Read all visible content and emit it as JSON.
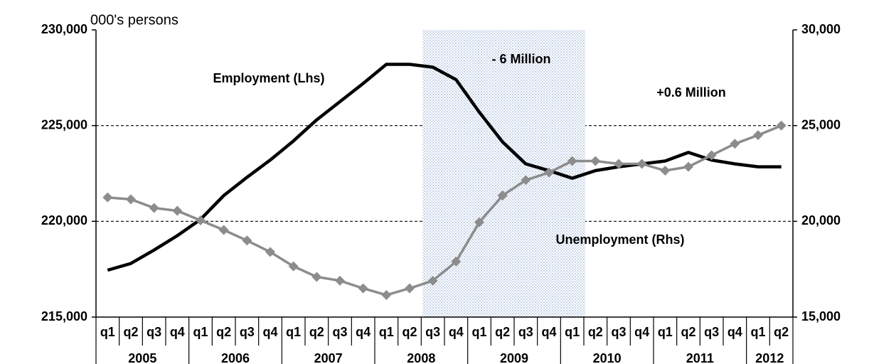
{
  "chart_data": {
    "type": "line",
    "y_unit_label": "000's persons",
    "categories": [
      "q1",
      "q2",
      "q3",
      "q4",
      "q1",
      "q2",
      "q3",
      "q4",
      "q1",
      "q2",
      "q3",
      "q4",
      "q1",
      "q2",
      "q3",
      "q4",
      "q1",
      "q2",
      "q3",
      "q4",
      "q1",
      "q2",
      "q3",
      "q4",
      "q1",
      "q2",
      "q3",
      "q4",
      "q1",
      "q2"
    ],
    "groups": [
      "2005",
      "2006",
      "2007",
      "2008",
      "2009",
      "2010",
      "2011",
      "2012"
    ],
    "series": [
      {
        "name": "Employment (Lhs)",
        "color": "#000000",
        "axis": "y",
        "values": [
          217450,
          217800,
          218500,
          219250,
          220100,
          221350,
          222300,
          223200,
          224200,
          225300,
          226250,
          227200,
          228200,
          228200,
          228050,
          227400,
          225700,
          224150,
          223000,
          222650,
          222250,
          222650,
          222850,
          223000,
          223150,
          223600,
          223200,
          223000,
          222850,
          222850
        ]
      },
      {
        "name": "Unemployment (Rhs)",
        "color": "#8c8c8c",
        "axis": "y2",
        "values": [
          21250,
          21150,
          20700,
          20550,
          20050,
          19550,
          19000,
          18400,
          17650,
          17100,
          16900,
          16500,
          16150,
          16500,
          16900,
          17900,
          19950,
          21350,
          22150,
          22550,
          23150,
          23150,
          23000,
          23000,
          22650,
          22850,
          23450,
          24050,
          24500,
          25000
        ]
      }
    ],
    "annotations": [
      "- 6 Million",
      "+0.6 Million"
    ],
    "ylim": [
      215000,
      230000
    ],
    "yticks": [
      {
        "value": 215000,
        "label": "215,000"
      },
      {
        "value": 220000,
        "label": "220,000"
      },
      {
        "value": 225000,
        "label": "225,000"
      },
      {
        "value": 230000,
        "label": "230,000"
      }
    ],
    "y2lim": [
      15000,
      30000
    ],
    "y2ticks": [
      {
        "value": 15000,
        "label": "15,000"
      },
      {
        "value": 20000,
        "label": "20,000"
      },
      {
        "value": 25000,
        "label": "25,000"
      },
      {
        "value": 30000,
        "label": "30,000"
      }
    ],
    "grid": true
  }
}
